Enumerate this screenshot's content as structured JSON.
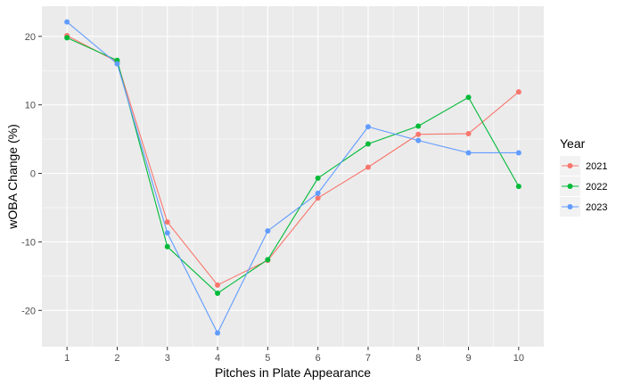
{
  "chart_data": {
    "type": "line",
    "title": "",
    "xlabel": "Pitches in Plate Appearance",
    "ylabel": "wOBA Change (%)",
    "x": [
      1,
      2,
      3,
      4,
      5,
      6,
      7,
      8,
      9,
      10
    ],
    "xticks": [
      "1",
      "2",
      "3",
      "4",
      "5",
      "6",
      "7",
      "8",
      "9",
      "10"
    ],
    "yticks": [
      -20,
      -10,
      0,
      10,
      20
    ],
    "ytick_labels": [
      "-20",
      "-10",
      "0",
      "10",
      "20"
    ],
    "xlim": [
      0.5,
      10.5
    ],
    "ylim": [
      -25.3,
      24.4
    ],
    "grid": true,
    "legend": {
      "title": "Year",
      "position": "right"
    },
    "series": [
      {
        "name": "2021",
        "color": "#F8766D",
        "values": [
          20.1,
          16.3,
          -7.1,
          -16.3,
          -12.7,
          -3.6,
          0.9,
          5.7,
          5.8,
          11.9
        ]
      },
      {
        "name": "2022",
        "color": "#00BA38",
        "values": [
          19.8,
          16.5,
          -10.7,
          -17.5,
          -12.6,
          -0.7,
          4.3,
          6.9,
          11.1,
          -1.9
        ]
      },
      {
        "name": "2023",
        "color": "#619CFF",
        "values": [
          22.1,
          16.0,
          -8.7,
          -23.3,
          -8.4,
          -2.9,
          6.8,
          4.8,
          3.0,
          3.0
        ]
      }
    ]
  }
}
